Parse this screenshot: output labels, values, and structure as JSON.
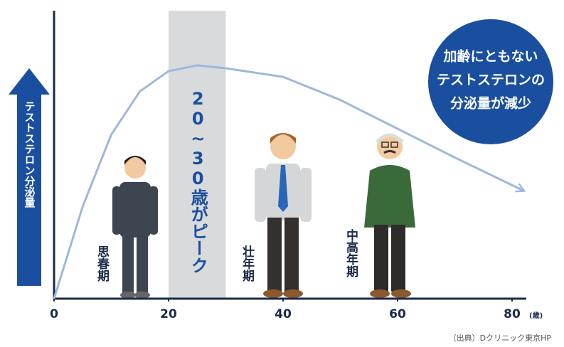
{
  "chart_data": {
    "type": "line",
    "x": [
      0,
      5,
      10,
      15,
      20,
      25,
      30,
      40,
      50,
      60,
      70,
      82
    ],
    "values": [
      0,
      32,
      57,
      72,
      79,
      81,
      80,
      77,
      69,
      59,
      49,
      37.5
    ],
    "color": "#9db8dc",
    "xlim": [
      0,
      80
    ],
    "xticks": [
      0,
      20,
      40,
      60,
      80
    ],
    "x_unit": "(歳)",
    "ylim": [
      0,
      100
    ],
    "y_label": "テストステロン分泌量",
    "peak_band": {
      "range": [
        20,
        30
      ],
      "label": "20~30歳がピーク",
      "color": "#d9dadc"
    },
    "callout": [
      "加齢にともない",
      "テストステロンの",
      "分泌量が減少"
    ],
    "stages": [
      "思春期",
      "壮年期",
      "中高年期"
    ],
    "source": "（出典）Dクリニック東京HP"
  }
}
